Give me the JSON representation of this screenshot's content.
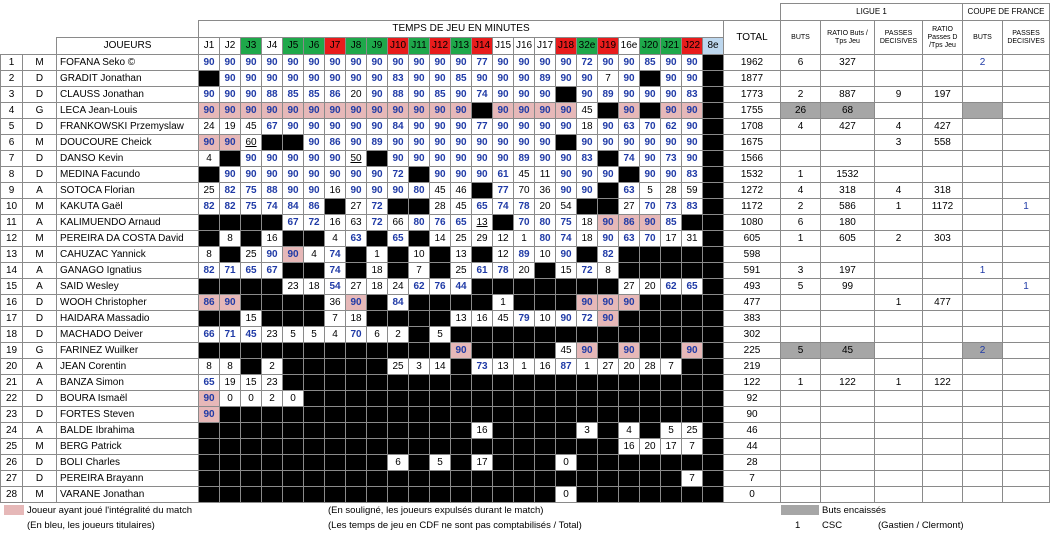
{
  "header": {
    "title": "TEMPS DE JEU EN MINUTES",
    "players_col": "JOUEURS",
    "total_col": "TOTAL",
    "ligue1": "LIGUE 1",
    "cdf": "COUPE DE FRANCE",
    "buts": "BUTS",
    "ratio_buts": "RATIO Buts / Tps Jeu",
    "passes": "PASSES DECISIVES",
    "ratio_passes": "RATIO Passes D /Tps Jeu",
    "cdf_buts": "BUTS",
    "cdf_passes": "PASSES DECISIVES"
  },
  "match_colors": {
    "red": "#e81c1c",
    "green": "#1ea84a",
    "light_blue": "#bdd7ee",
    "pink": "#e6b8b8",
    "grey": "#a6a6a6",
    "blue_text": "#1f3aa6"
  },
  "matches": [
    {
      "label": "J1",
      "c": ""
    },
    {
      "label": "J2",
      "c": ""
    },
    {
      "label": "J3",
      "c": "g"
    },
    {
      "label": "J4",
      "c": ""
    },
    {
      "label": "J5",
      "c": "g"
    },
    {
      "label": "J6",
      "c": "g"
    },
    {
      "label": "J7",
      "c": "r"
    },
    {
      "label": "J8",
      "c": "g"
    },
    {
      "label": "J9",
      "c": "g"
    },
    {
      "label": "J10",
      "c": "r"
    },
    {
      "label": "J11",
      "c": "g"
    },
    {
      "label": "J12",
      "c": "r"
    },
    {
      "label": "J13",
      "c": "g"
    },
    {
      "label": "J14",
      "c": "r"
    },
    {
      "label": "J15",
      "c": ""
    },
    {
      "label": "J16",
      "c": ""
    },
    {
      "label": "J17",
      "c": ""
    },
    {
      "label": "J18",
      "c": "r"
    },
    {
      "label": "32e",
      "c": "g"
    },
    {
      "label": "J19",
      "c": "r"
    },
    {
      "label": "16e",
      "c": ""
    },
    {
      "label": "J20",
      "c": "g"
    },
    {
      "label": "J21",
      "c": "g"
    },
    {
      "label": "J22",
      "c": "r"
    },
    {
      "label": "8e",
      "c": "lb"
    }
  ],
  "players": [
    {
      "n": "1",
      "pos": "M",
      "name": "FOFANA Seko ©",
      "cells": [
        "90b",
        "90b",
        "90b",
        "90b",
        "90b",
        "90b",
        "90b",
        "90b",
        "90b",
        "90b",
        "90b",
        "90b",
        "90b",
        "77b",
        "90b",
        "90b",
        "90b",
        "90b",
        "72b",
        "90b",
        "90b",
        "85b",
        "90b",
        "90b",
        "-"
      ],
      "total": "1962",
      "buts": "6",
      "ratio": "327",
      "passes": "",
      "ratio_p": "",
      "cdf_buts": "2",
      "cdf_passes": ""
    },
    {
      "n": "2",
      "pos": "D",
      "name": "GRADIT Jonathan",
      "cells": [
        "K",
        "90b",
        "90b",
        "90b",
        "90b",
        "90b",
        "90b",
        "90b",
        "90b",
        "83b",
        "90b",
        "90b",
        "85b",
        "90b",
        "90b",
        "90b",
        "89b",
        "90b",
        "90b",
        "7",
        "90b",
        "K",
        "90b",
        "90b",
        "-"
      ],
      "total": "1877",
      "buts": "",
      "ratio": "",
      "passes": "",
      "ratio_p": "",
      "cdf_buts": "",
      "cdf_passes": ""
    },
    {
      "n": "3",
      "pos": "D",
      "name": "CLAUSS Jonathan",
      "cells": [
        "90b",
        "90b",
        "90b",
        "88b",
        "85b",
        "85b",
        "86b",
        "20",
        "90b",
        "88b",
        "90b",
        "85b",
        "90b",
        "74b",
        "90b",
        "90b",
        "90b",
        "K",
        "90b",
        "89b",
        "90b",
        "90b",
        "90b",
        "83b",
        "-"
      ],
      "total": "1773",
      "buts": "2",
      "ratio": "887",
      "passes": "9",
      "ratio_p": "197",
      "cdf_buts": "",
      "cdf_passes": ""
    },
    {
      "n": "4",
      "pos": "G",
      "name": "LECA Jean-Louis",
      "cells": [
        "90p",
        "90p",
        "90p",
        "90p",
        "90p",
        "90p",
        "90p",
        "90p",
        "90p",
        "90p",
        "90p",
        "90p",
        "90p",
        "K",
        "90p",
        "90p",
        "90p",
        "90p",
        "45",
        "K",
        "90p",
        "K",
        "90p",
        "90p",
        "-"
      ],
      "total": "1755",
      "buts": "26",
      "ratio": "68",
      "passes": "",
      "ratio_p": "",
      "cdf_buts": "",
      "cdf_passes": "",
      "gy": true
    },
    {
      "n": "5",
      "pos": "D",
      "name": "FRANKOWSKI Przemyslaw",
      "cells": [
        "24",
        "19",
        "45",
        "67b",
        "90b",
        "90b",
        "90b",
        "90b",
        "90b",
        "84b",
        "90b",
        "90b",
        "90b",
        "77b",
        "90b",
        "90b",
        "90b",
        "90b",
        "18",
        "90b",
        "63b",
        "70b",
        "62b",
        "90b",
        "-"
      ],
      "total": "1708",
      "buts": "4",
      "ratio": "427",
      "passes": "4",
      "ratio_p": "427",
      "cdf_buts": "",
      "cdf_passes": ""
    },
    {
      "n": "6",
      "pos": "M",
      "name": "DOUCOURE Cheick",
      "cells": [
        "90p",
        "90p",
        "60u",
        "K",
        "K",
        "90b",
        "86b",
        "90b",
        "89b",
        "90b",
        "90b",
        "90b",
        "90b",
        "90b",
        "90b",
        "90b",
        "90b",
        "K",
        "90b",
        "90b",
        "90b",
        "90b",
        "90b",
        "90b",
        "-"
      ],
      "total": "1675",
      "buts": "",
      "ratio": "",
      "passes": "3",
      "ratio_p": "558",
      "cdf_buts": "",
      "cdf_passes": ""
    },
    {
      "n": "7",
      "pos": "D",
      "name": "DANSO Kevin",
      "cells": [
        "4",
        "K",
        "90b",
        "90b",
        "90b",
        "90b",
        "90b",
        "50u",
        "K",
        "90b",
        "90b",
        "90b",
        "90b",
        "90b",
        "90b",
        "89b",
        "90b",
        "90b",
        "83b",
        "K",
        "74b",
        "90b",
        "73b",
        "90b",
        "-"
      ],
      "total": "1566",
      "buts": "",
      "ratio": "",
      "passes": "",
      "ratio_p": "",
      "cdf_buts": "",
      "cdf_passes": ""
    },
    {
      "n": "8",
      "pos": "D",
      "name": "MEDINA Facundo",
      "cells": [
        "K",
        "90b",
        "90b",
        "90b",
        "90b",
        "90b",
        "90b",
        "90b",
        "90b",
        "72b",
        "K",
        "90b",
        "90b",
        "90b",
        "61b",
        "45",
        "11",
        "90b",
        "90b",
        "90b",
        "K",
        "90b",
        "90b",
        "83b",
        "-"
      ],
      "total": "1532",
      "buts": "1",
      "ratio": "1532",
      "passes": "",
      "ratio_p": "",
      "cdf_buts": "",
      "cdf_passes": ""
    },
    {
      "n": "9",
      "pos": "A",
      "name": "SOTOCA Florian",
      "cells": [
        "25",
        "82b",
        "75b",
        "88b",
        "90b",
        "90b",
        "16",
        "90b",
        "90b",
        "90b",
        "80b",
        "45",
        "46",
        "K",
        "77b",
        "70",
        "36",
        "90b",
        "90b",
        "K",
        "63b",
        "5",
        "28",
        "59",
        "-"
      ],
      "total": "1272",
      "buts": "4",
      "ratio": "318",
      "passes": "4",
      "ratio_p": "318",
      "cdf_buts": "",
      "cdf_passes": ""
    },
    {
      "n": "10",
      "pos": "M",
      "name": "KAKUTA Gaël",
      "cells": [
        "82b",
        "82b",
        "75b",
        "74b",
        "84b",
        "86b",
        "K",
        "27",
        "72b",
        "K",
        "K",
        "28",
        "45",
        "65b",
        "74b",
        "78b",
        "20",
        "54",
        "K",
        "K",
        "27",
        "70b",
        "73b",
        "83b",
        "-"
      ],
      "total": "1172",
      "buts": "2",
      "ratio": "586",
      "passes": "1",
      "ratio_p": "1172",
      "cdf_buts": "",
      "cdf_passes": "1"
    },
    {
      "n": "11",
      "pos": "A",
      "name": "KALIMUENDO Arnaud",
      "cells": [
        "K",
        "K",
        "K",
        "K",
        "67b",
        "72b",
        "16",
        "63",
        "72b",
        "66",
        "80b",
        "76b",
        "65b",
        "13u",
        "K",
        "70b",
        "80b",
        "75b",
        "18",
        "90p",
        "86p",
        "90p",
        "85b",
        "K",
        "-"
      ],
      "total": "1080",
      "buts": "6",
      "ratio": "180",
      "passes": "",
      "ratio_p": "",
      "cdf_buts": "",
      "cdf_passes": ""
    },
    {
      "n": "12",
      "pos": "M",
      "name": "PEREIRA DA COSTA David",
      "cells": [
        "K",
        "8",
        "K",
        "16",
        "K",
        "K",
        "4",
        "63b",
        "K",
        "65b",
        "K",
        "14",
        "25",
        "29",
        "12",
        "1",
        "80b",
        "74b",
        "18",
        "90b",
        "63b",
        "70b",
        "17",
        "31",
        "-"
      ],
      "total": "605",
      "buts": "1",
      "ratio": "605",
      "passes": "2",
      "ratio_p": "303",
      "cdf_buts": "",
      "cdf_passes": ""
    },
    {
      "n": "13",
      "pos": "M",
      "name": "CAHUZAC Yannick",
      "cells": [
        "8",
        "K",
        "25",
        "90b",
        "90p",
        "4",
        "74b",
        "K",
        "1",
        "K",
        "10",
        "K",
        "13",
        "K",
        "12",
        "89b",
        "10",
        "90b",
        "K",
        "82b",
        "K",
        "K",
        "K",
        "K",
        "-"
      ],
      "total": "598",
      "buts": "",
      "ratio": "",
      "passes": "",
      "ratio_p": "",
      "cdf_buts": "",
      "cdf_passes": ""
    },
    {
      "n": "14",
      "pos": "A",
      "name": "GANAGO Ignatius",
      "cells": [
        "82b",
        "71b",
        "65b",
        "67b",
        "K",
        "K",
        "74b",
        "K",
        "18",
        "K",
        "7",
        "K",
        "25",
        "61b",
        "78b",
        "20",
        "K",
        "15",
        "72b",
        "8",
        "K",
        "K",
        "K",
        "K",
        "-"
      ],
      "total": "591",
      "buts": "3",
      "ratio": "197",
      "passes": "",
      "ratio_p": "",
      "cdf_buts": "1",
      "cdf_passes": ""
    },
    {
      "n": "15",
      "pos": "A",
      "name": "SAID Wesley",
      "cells": [
        "K",
        "K",
        "K",
        "K",
        "23",
        "18",
        "54b",
        "27",
        "18",
        "24",
        "62b",
        "76b",
        "44b",
        "K",
        "K",
        "K",
        "K",
        "K",
        "K",
        "K",
        "27",
        "20",
        "62b",
        "65b",
        "-"
      ],
      "total": "493",
      "buts": "5",
      "ratio": "99",
      "passes": "",
      "ratio_p": "",
      "cdf_buts": "",
      "cdf_passes": "1"
    },
    {
      "n": "16",
      "pos": "D",
      "name": "WOOH Christopher",
      "cells": [
        "86p",
        "90p",
        "K",
        "K",
        "K",
        "K",
        "36",
        "90p",
        "K",
        "84b",
        "K",
        "K",
        "K",
        "K",
        "1",
        "K",
        "K",
        "K",
        "90p",
        "90p",
        "90p",
        "K",
        "K",
        "K",
        "-"
      ],
      "total": "477",
      "buts": "",
      "ratio": "",
      "passes": "1",
      "ratio_p": "477",
      "cdf_buts": "",
      "cdf_passes": ""
    },
    {
      "n": "17",
      "pos": "D",
      "name": "HAIDARA Massadio",
      "cells": [
        "K",
        "K",
        "15",
        "K",
        "K",
        "K",
        "7",
        "18",
        "K",
        "K",
        "K",
        "K",
        "13",
        "16",
        "45",
        "79b",
        "10",
        "90b",
        "72b",
        "90p",
        "K",
        "K",
        "K",
        "K",
        "-"
      ],
      "total": "383",
      "buts": "",
      "ratio": "",
      "passes": "",
      "ratio_p": "",
      "cdf_buts": "",
      "cdf_passes": ""
    },
    {
      "n": "18",
      "pos": "D",
      "name": "MACHADO Deiver",
      "cells": [
        "66b",
        "71b",
        "45b",
        "23",
        "5",
        "5",
        "4",
        "70b",
        "6",
        "2",
        "K",
        "5",
        "K",
        "K",
        "K",
        "K",
        "K",
        "K",
        "K",
        "K",
        "K",
        "K",
        "K",
        "K",
        "-"
      ],
      "total": "302",
      "buts": "",
      "ratio": "",
      "passes": "",
      "ratio_p": "",
      "cdf_buts": "",
      "cdf_passes": ""
    },
    {
      "n": "19",
      "pos": "G",
      "name": "FARINEZ Wuilker",
      "cells": [
        "K",
        "K",
        "K",
        "K",
        "K",
        "K",
        "K",
        "K",
        "K",
        "K",
        "K",
        "K",
        "90p",
        "K",
        "K",
        "K",
        "K",
        "45",
        "90p",
        "K",
        "90p",
        "K",
        "K",
        "90p",
        "-"
      ],
      "total": "225",
      "buts": "5",
      "ratio": "45",
      "passes": "",
      "ratio_p": "",
      "cdf_buts": "2",
      "cdf_passes": "",
      "gy": true
    },
    {
      "n": "20",
      "pos": "A",
      "name": "JEAN Corentin",
      "cells": [
        "8",
        "8",
        "K",
        "2",
        "K",
        "K",
        "K",
        "K",
        "K",
        "25",
        "3",
        "14",
        "K",
        "73b",
        "13",
        "1",
        "16",
        "87b",
        "1",
        "27",
        "20",
        "28",
        "7",
        "K",
        "-"
      ],
      "total": "219",
      "buts": "",
      "ratio": "",
      "passes": "",
      "ratio_p": "",
      "cdf_buts": "",
      "cdf_passes": ""
    },
    {
      "n": "21",
      "pos": "A",
      "name": "BANZA Simon",
      "cells": [
        "65b",
        "19",
        "15",
        "23",
        "K",
        "K",
        "K",
        "K",
        "K",
        "K",
        "K",
        "K",
        "K",
        "K",
        "K",
        "K",
        "K",
        "K",
        "K",
        "K",
        "K",
        "K",
        "K",
        "K",
        "-"
      ],
      "total": "122",
      "buts": "1",
      "ratio": "122",
      "passes": "1",
      "ratio_p": "122",
      "cdf_buts": "",
      "cdf_passes": ""
    },
    {
      "n": "22",
      "pos": "D",
      "name": "BOURA Ismaël",
      "cells": [
        "90p",
        "0",
        "0",
        "2",
        "0",
        "K",
        "K",
        "K",
        "K",
        "K",
        "K",
        "K",
        "K",
        "K",
        "K",
        "K",
        "K",
        "K",
        "K",
        "K",
        "K",
        "K",
        "K",
        "K",
        "-"
      ],
      "total": "92",
      "buts": "",
      "ratio": "",
      "passes": "",
      "ratio_p": "",
      "cdf_buts": "",
      "cdf_passes": ""
    },
    {
      "n": "23",
      "pos": "D",
      "name": "FORTES Steven",
      "cells": [
        "90p",
        "K",
        "K",
        "K",
        "K",
        "K",
        "K",
        "K",
        "K",
        "K",
        "K",
        "K",
        "K",
        "K",
        "K",
        "K",
        "K",
        "K",
        "K",
        "K",
        "K",
        "K",
        "K",
        "K",
        "-"
      ],
      "total": "90",
      "buts": "",
      "ratio": "",
      "passes": "",
      "ratio_p": "",
      "cdf_buts": "",
      "cdf_passes": ""
    },
    {
      "n": "24",
      "pos": "A",
      "name": "BALDE Ibrahima",
      "cells": [
        "K",
        "K",
        "K",
        "K",
        "K",
        "K",
        "K",
        "K",
        "K",
        "K",
        "K",
        "K",
        "K",
        "16",
        "K",
        "K",
        "K",
        "K",
        "3",
        "K",
        "4",
        "K",
        "5",
        "25",
        "-"
      ],
      "total": "46",
      "buts": "",
      "ratio": "",
      "passes": "",
      "ratio_p": "",
      "cdf_buts": "",
      "cdf_passes": ""
    },
    {
      "n": "25",
      "pos": "M",
      "name": "BERG Patrick",
      "cells": [
        "K",
        "K",
        "K",
        "K",
        "K",
        "K",
        "K",
        "K",
        "K",
        "K",
        "K",
        "K",
        "K",
        "K",
        "K",
        "K",
        "K",
        "K",
        "K",
        "K",
        "16",
        "20",
        "17",
        "7",
        "-"
      ],
      "total": "44",
      "buts": "",
      "ratio": "",
      "passes": "",
      "ratio_p": "",
      "cdf_buts": "",
      "cdf_passes": ""
    },
    {
      "n": "26",
      "pos": "D",
      "name": "BOLI Charles",
      "cells": [
        "K",
        "K",
        "K",
        "K",
        "K",
        "K",
        "K",
        "K",
        "K",
        "6",
        "K",
        "5",
        "K",
        "17",
        "K",
        "K",
        "K",
        "0",
        "K",
        "K",
        "K",
        "K",
        "K",
        "K",
        "-"
      ],
      "total": "28",
      "buts": "",
      "ratio": "",
      "passes": "",
      "ratio_p": "",
      "cdf_buts": "",
      "cdf_passes": ""
    },
    {
      "n": "27",
      "pos": "D",
      "name": "PEREIRA Brayann",
      "cells": [
        "K",
        "K",
        "K",
        "K",
        "K",
        "K",
        "K",
        "K",
        "K",
        "K",
        "K",
        "K",
        "K",
        "K",
        "K",
        "K",
        "K",
        "K",
        "K",
        "K",
        "K",
        "K",
        "K",
        "7",
        "-"
      ],
      "total": "7",
      "buts": "",
      "ratio": "",
      "passes": "",
      "ratio_p": "",
      "cdf_buts": "",
      "cdf_passes": ""
    },
    {
      "n": "28",
      "pos": "M",
      "name": "VARANE Jonathan",
      "cells": [
        "K",
        "K",
        "K",
        "K",
        "K",
        "K",
        "K",
        "K",
        "K",
        "K",
        "K",
        "K",
        "K",
        "K",
        "K",
        "K",
        "K",
        "0",
        "K",
        "K",
        "K",
        "K",
        "K",
        "K",
        "-"
      ],
      "total": "0",
      "buts": "",
      "ratio": "",
      "passes": "",
      "ratio_p": "",
      "cdf_buts": "",
      "cdf_passes": ""
    }
  ],
  "legend": {
    "full_match": "Joueur ayant joué l'intégralité du match",
    "starters": "(En bleu, les joueurs titulaires)",
    "underline": "(En souligné, les joueurs expulsés durant le match)",
    "cdf_note": "(Les temps de jeu en CDF ne sont pas comptabilisés / Total)",
    "conceded": "Buts encaissés",
    "csc_count": "1",
    "csc": "CSC",
    "csc_detail": "(Gastien / Clermont)"
  }
}
